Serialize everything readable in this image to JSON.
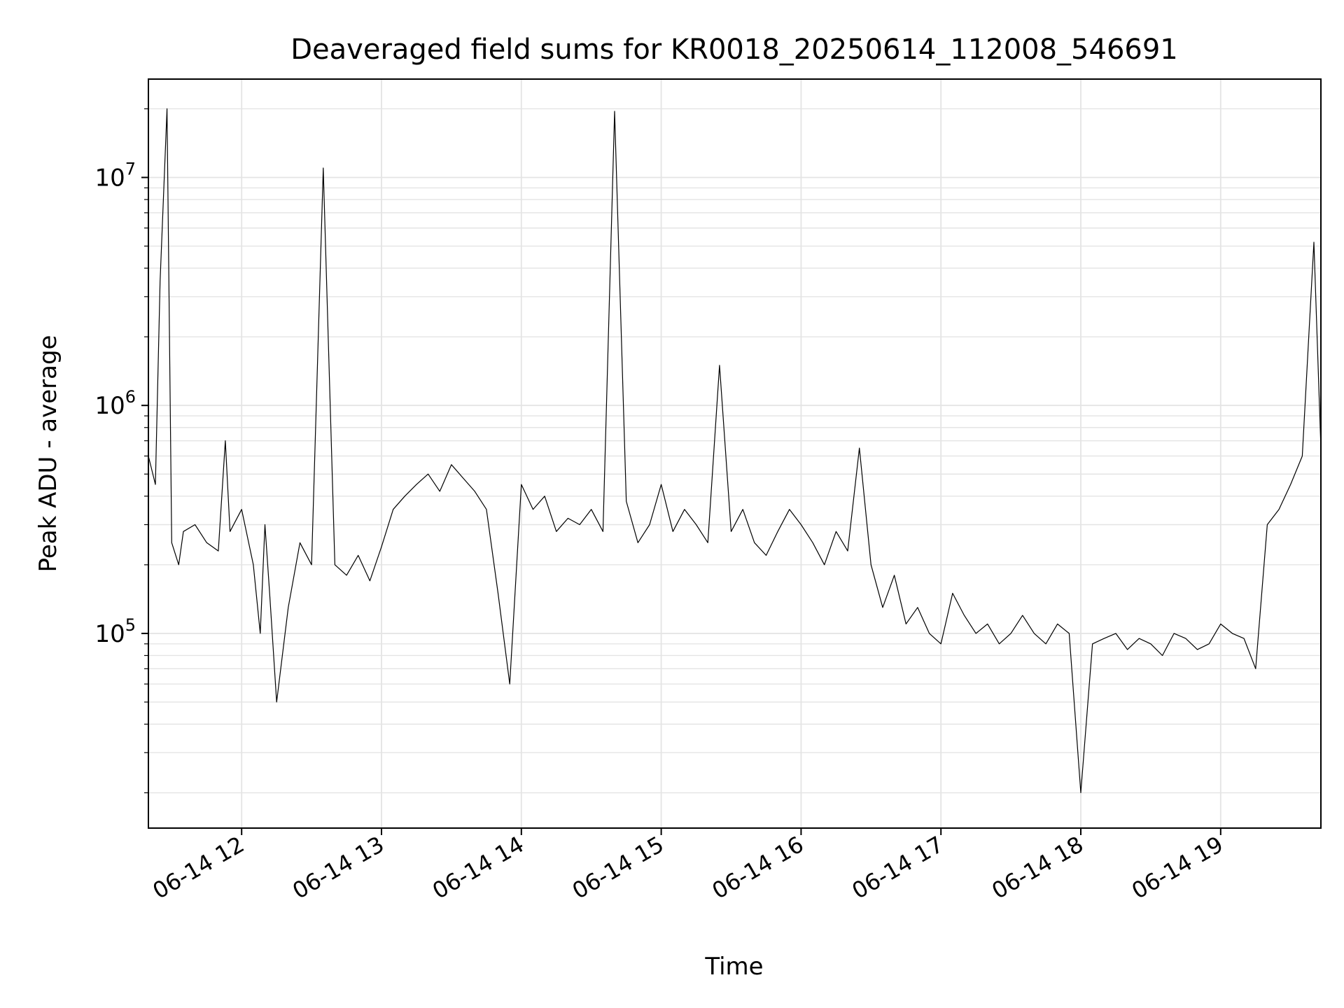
{
  "chart_data": {
    "type": "line",
    "title": "Deaveraged field sums for KR0018_20250614_112008_546691",
    "xlabel": "Time",
    "ylabel": "Peak ADU - average",
    "y_scale": "log",
    "ylim": [
      14000,
      27000000
    ],
    "xlim": [
      "2025-06-14 11:20",
      "2025-06-14 19:43"
    ],
    "grid": true,
    "x_ticks": [
      "06-14 12",
      "06-14 13",
      "06-14 14",
      "06-14 15",
      "06-14 16",
      "06-14 17",
      "06-14 18",
      "06-14 19"
    ],
    "y_ticks": [
      {
        "base": "10",
        "exp": "5",
        "value": 100000
      },
      {
        "base": "10",
        "exp": "6",
        "value": 1000000
      },
      {
        "base": "10",
        "exp": "7",
        "value": 10000000
      }
    ],
    "line_color": "#000000",
    "series": [
      {
        "x": [
          "2025-06-14 11:20",
          "2025-06-14 11:23",
          "2025-06-14 11:25",
          "2025-06-14 11:28",
          "2025-06-14 11:30",
          "2025-06-14 11:33",
          "2025-06-14 11:35",
          "2025-06-14 11:40",
          "2025-06-14 11:45",
          "2025-06-14 11:50",
          "2025-06-14 11:53",
          "2025-06-14 11:55",
          "2025-06-14 12:00",
          "2025-06-14 12:05",
          "2025-06-14 12:08",
          "2025-06-14 12:10",
          "2025-06-14 12:12",
          "2025-06-14 12:15",
          "2025-06-14 12:20",
          "2025-06-14 12:25",
          "2025-06-14 12:30",
          "2025-06-14 12:35",
          "2025-06-14 12:40",
          "2025-06-14 12:45",
          "2025-06-14 12:50",
          "2025-06-14 12:55",
          "2025-06-14 13:00",
          "2025-06-14 13:05",
          "2025-06-14 13:10",
          "2025-06-14 13:15",
          "2025-06-14 13:20",
          "2025-06-14 13:25",
          "2025-06-14 13:30",
          "2025-06-14 13:35",
          "2025-06-14 13:40",
          "2025-06-14 13:45",
          "2025-06-14 13:50",
          "2025-06-14 13:55",
          "2025-06-14 14:00",
          "2025-06-14 14:05",
          "2025-06-14 14:10",
          "2025-06-14 14:15",
          "2025-06-14 14:20",
          "2025-06-14 14:25",
          "2025-06-14 14:30",
          "2025-06-14 14:35",
          "2025-06-14 14:40",
          "2025-06-14 14:45",
          "2025-06-14 14:50",
          "2025-06-14 14:55",
          "2025-06-14 15:00",
          "2025-06-14 15:05",
          "2025-06-14 15:10",
          "2025-06-14 15:15",
          "2025-06-14 15:20",
          "2025-06-14 15:25",
          "2025-06-14 15:30",
          "2025-06-14 15:35",
          "2025-06-14 15:40",
          "2025-06-14 15:45",
          "2025-06-14 15:50",
          "2025-06-14 15:55",
          "2025-06-14 16:00",
          "2025-06-14 16:05",
          "2025-06-14 16:10",
          "2025-06-14 16:15",
          "2025-06-14 16:20",
          "2025-06-14 16:25",
          "2025-06-14 16:30",
          "2025-06-14 16:35",
          "2025-06-14 16:40",
          "2025-06-14 16:45",
          "2025-06-14 16:50",
          "2025-06-14 16:55",
          "2025-06-14 17:00",
          "2025-06-14 17:05",
          "2025-06-14 17:10",
          "2025-06-14 17:15",
          "2025-06-14 17:20",
          "2025-06-14 17:25",
          "2025-06-14 17:30",
          "2025-06-14 17:35",
          "2025-06-14 17:40",
          "2025-06-14 17:45",
          "2025-06-14 17:50",
          "2025-06-14 17:55",
          "2025-06-14 18:00",
          "2025-06-14 18:05",
          "2025-06-14 18:10",
          "2025-06-14 18:15",
          "2025-06-14 18:20",
          "2025-06-14 18:25",
          "2025-06-14 18:30",
          "2025-06-14 18:35",
          "2025-06-14 18:40",
          "2025-06-14 18:45",
          "2025-06-14 18:50",
          "2025-06-14 18:55",
          "2025-06-14 19:00",
          "2025-06-14 19:05",
          "2025-06-14 19:10",
          "2025-06-14 19:15",
          "2025-06-14 19:20",
          "2025-06-14 19:25",
          "2025-06-14 19:30",
          "2025-06-14 19:35",
          "2025-06-14 19:40",
          "2025-06-14 19:43"
        ],
        "y": [
          600000,
          450000,
          3500000,
          20000000,
          250000,
          200000,
          280000,
          300000,
          250000,
          230000,
          700000,
          280000,
          350000,
          200000,
          100000,
          300000,
          150000,
          50000,
          130000,
          250000,
          200000,
          11000000,
          200000,
          180000,
          220000,
          170000,
          240000,
          350000,
          400000,
          450000,
          500000,
          420000,
          550000,
          480000,
          420000,
          350000,
          150000,
          60000,
          450000,
          350000,
          400000,
          280000,
          320000,
          300000,
          350000,
          280000,
          19500000,
          380000,
          250000,
          300000,
          450000,
          280000,
          350000,
          300000,
          250000,
          1500000,
          280000,
          350000,
          250000,
          220000,
          280000,
          350000,
          300000,
          250000,
          200000,
          280000,
          230000,
          650000,
          200000,
          130000,
          180000,
          110000,
          130000,
          100000,
          90000,
          150000,
          120000,
          100000,
          110000,
          90000,
          100000,
          120000,
          100000,
          90000,
          110000,
          100000,
          20000,
          90000,
          95000,
          100000,
          85000,
          95000,
          90000,
          80000,
          100000,
          95000,
          85000,
          90000,
          110000,
          100000,
          95000,
          70000,
          300000,
          350000,
          450000,
          600000,
          5200000,
          650000
        ]
      }
    ]
  }
}
